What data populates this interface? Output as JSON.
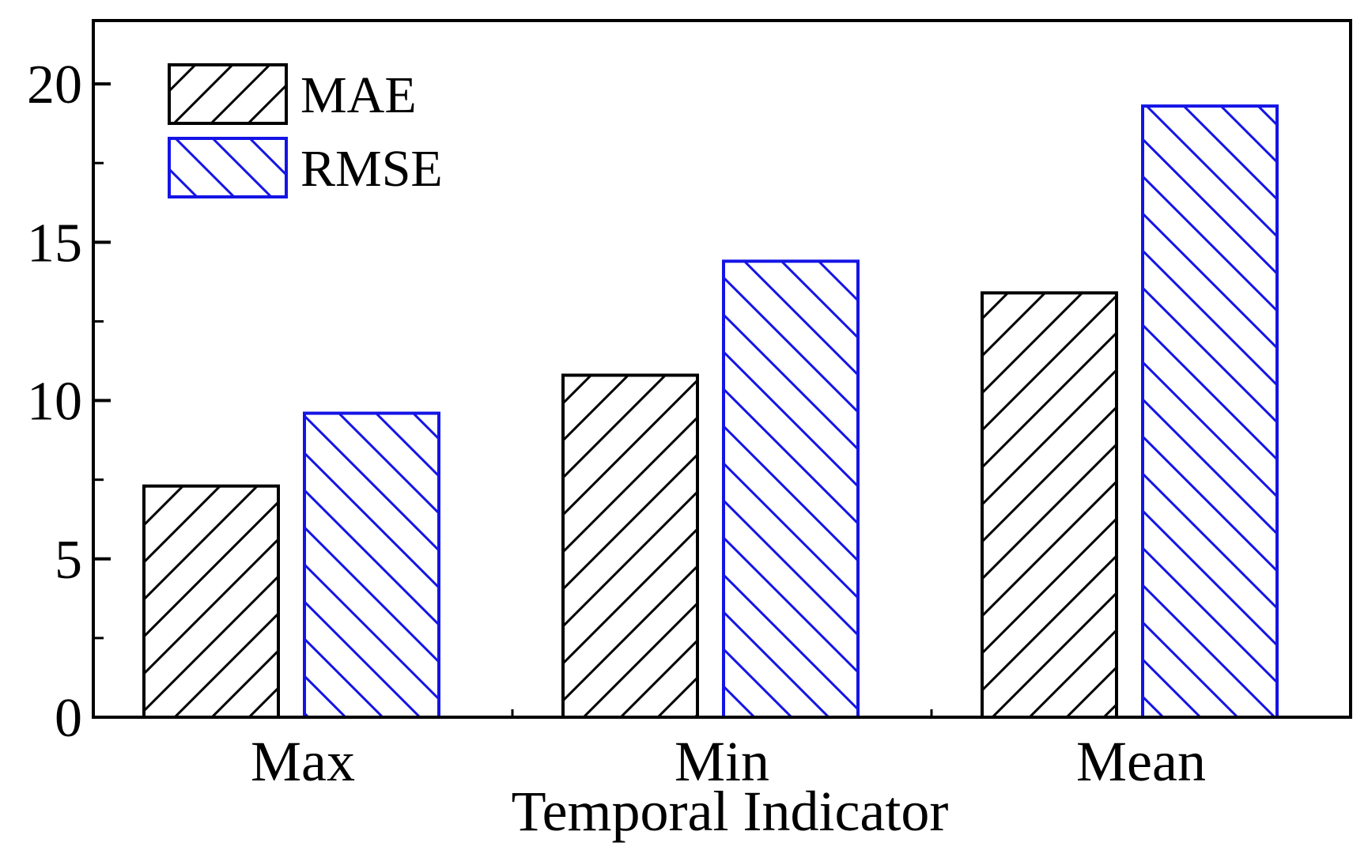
{
  "chart_data": {
    "type": "bar",
    "title": "",
    "xlabel": "Temporal Indicator",
    "ylabel": "",
    "categories": [
      "Max",
      "Min",
      "Mean"
    ],
    "series": [
      {
        "name": "MAE",
        "values": [
          7.3,
          10.8,
          13.4
        ],
        "color": "#000000",
        "hatch": "forward-diagonal"
      },
      {
        "name": "RMSE",
        "values": [
          9.6,
          14.4,
          19.3
        ],
        "color": "#1414e6",
        "hatch": "backward-diagonal"
      }
    ],
    "ylim": [
      0,
      22
    ],
    "y_ticks": [
      0,
      5,
      10,
      15,
      20
    ],
    "y_tick_labels": [
      "0",
      "5",
      "10",
      "15",
      "20"
    ],
    "y_minor_step": 2.5,
    "grid": false,
    "legend_position": "top-left"
  }
}
